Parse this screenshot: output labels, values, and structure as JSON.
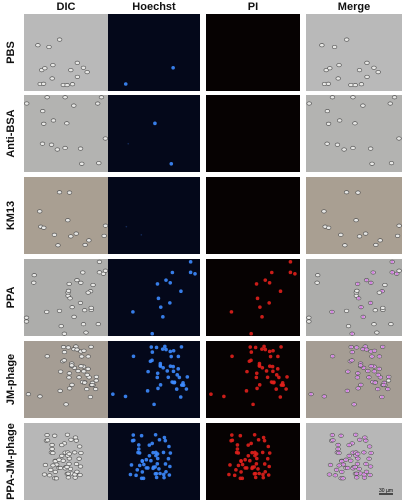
{
  "columns": [
    "DIC",
    "Hoechst",
    "PI",
    "Merge"
  ],
  "rows": [
    {
      "label": "PBS"
    },
    {
      "label": "Anti-BSA"
    },
    {
      "label": "KM13"
    },
    {
      "label": "PPA"
    },
    {
      "label": "JM-phage"
    },
    {
      "label": "PPA-JM-phage"
    }
  ],
  "scale_bar": "30 µm"
}
